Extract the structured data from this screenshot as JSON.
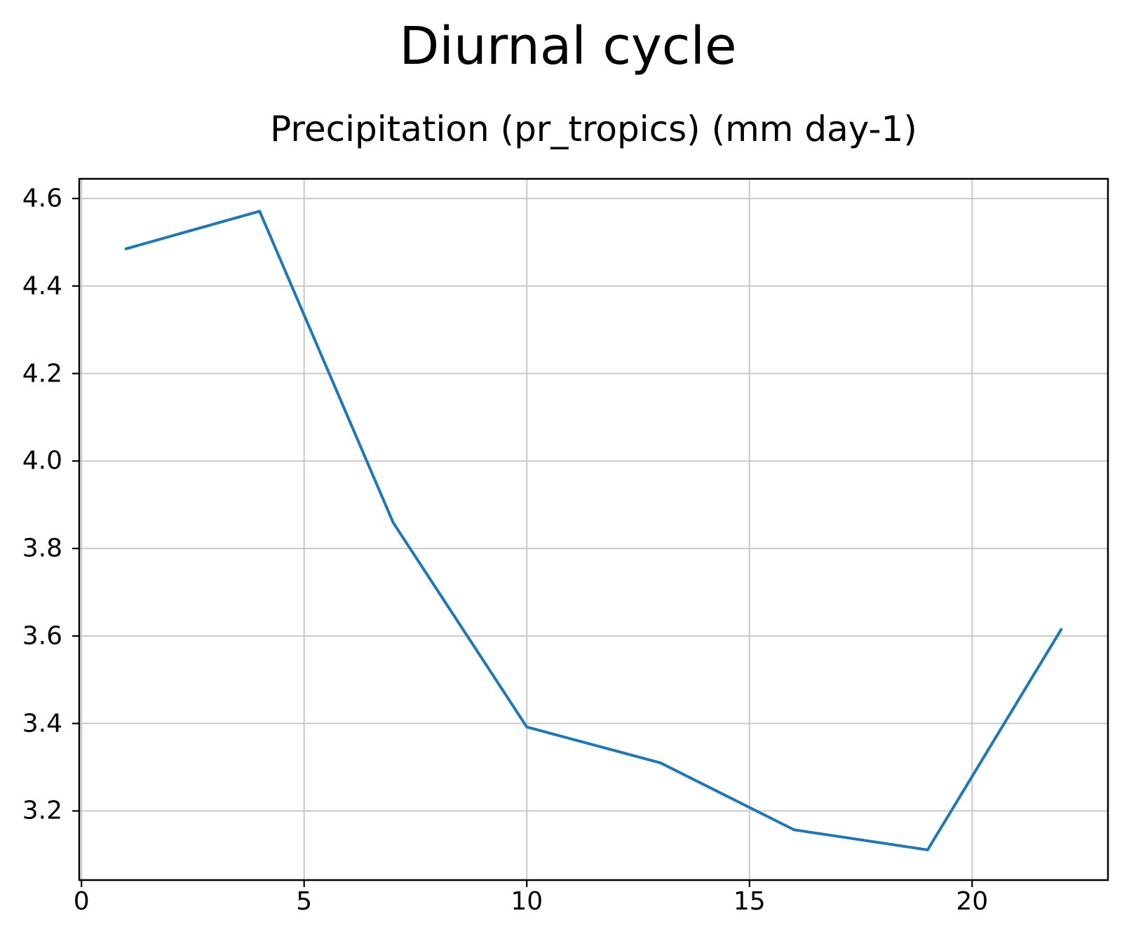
{
  "title": "Diurnal cycle",
  "subtitle": "Precipitation (pr_tropics) (mm day-1)",
  "chart_data": {
    "type": "line",
    "title": "Diurnal cycle",
    "subtitle": "Precipitation (pr_tropics) (mm day-1)",
    "x": [
      1,
      4,
      7,
      10,
      13,
      16,
      19,
      22
    ],
    "values": [
      4.485,
      4.571,
      3.859,
      3.392,
      3.31,
      3.157,
      3.111,
      3.615
    ],
    "xlabel": "",
    "ylabel": "",
    "xlim": [
      -0.05,
      23.05
    ],
    "ylim": [
      3.042,
      4.645
    ],
    "xticks": [
      0,
      5,
      10,
      15,
      20
    ],
    "xtick_labels": [
      "0",
      "5",
      "10",
      "15",
      "20"
    ],
    "yticks": [
      3.2,
      3.4,
      3.6,
      3.8,
      4.0,
      4.2,
      4.4,
      4.6
    ],
    "ytick_labels": [
      "3.2",
      "3.4",
      "3.6",
      "3.8",
      "4.0",
      "4.2",
      "4.4",
      "4.6"
    ],
    "grid": true,
    "legend": "none",
    "line_color": "#1f77b4",
    "grid_color": "#c9c9c9",
    "axis_color": "#000000"
  }
}
